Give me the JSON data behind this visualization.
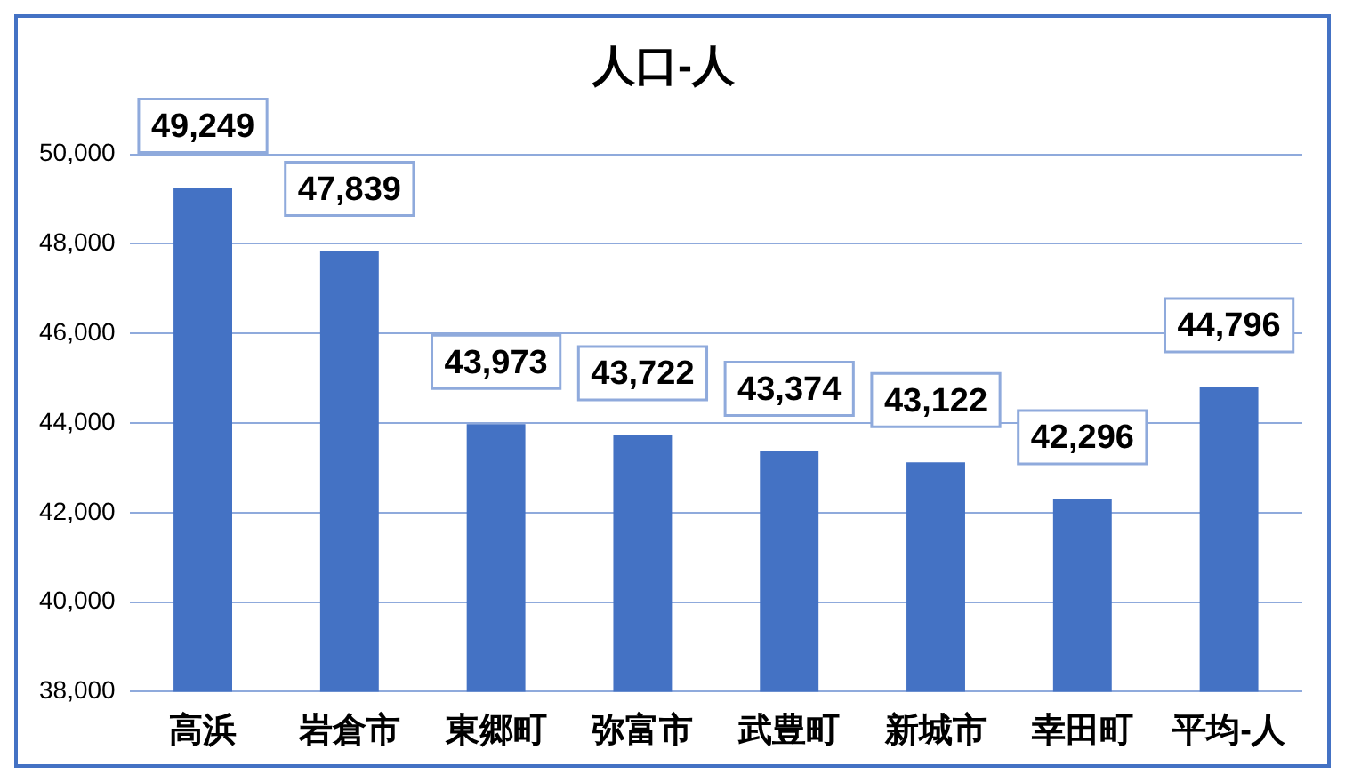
{
  "chart_data": {
    "type": "bar",
    "title": "人口-人",
    "categories": [
      "高浜",
      "岩倉市",
      "東郷町",
      "弥富市",
      "武豊町",
      "新城市",
      "幸田町",
      "平均-人"
    ],
    "values": [
      49249,
      47839,
      43973,
      43722,
      43374,
      43122,
      42296,
      44796
    ],
    "value_labels": [
      "49,249",
      "47,839",
      "43,973",
      "43,722",
      "43,374",
      "43,122",
      "42,296",
      "44,796"
    ],
    "color": "#4472c4",
    "ylim": [
      38000,
      50000
    ],
    "yticks": [
      {
        "value": 38000,
        "label": "38,000"
      },
      {
        "value": 40000,
        "label": "40,000"
      },
      {
        "value": 42000,
        "label": "42,000"
      },
      {
        "value": 44000,
        "label": "44,000"
      },
      {
        "value": 46000,
        "label": "46,000"
      },
      {
        "value": 48000,
        "label": "48,000"
      },
      {
        "value": 50000,
        "label": "50,000"
      }
    ],
    "grid": "y",
    "legend": false
  }
}
